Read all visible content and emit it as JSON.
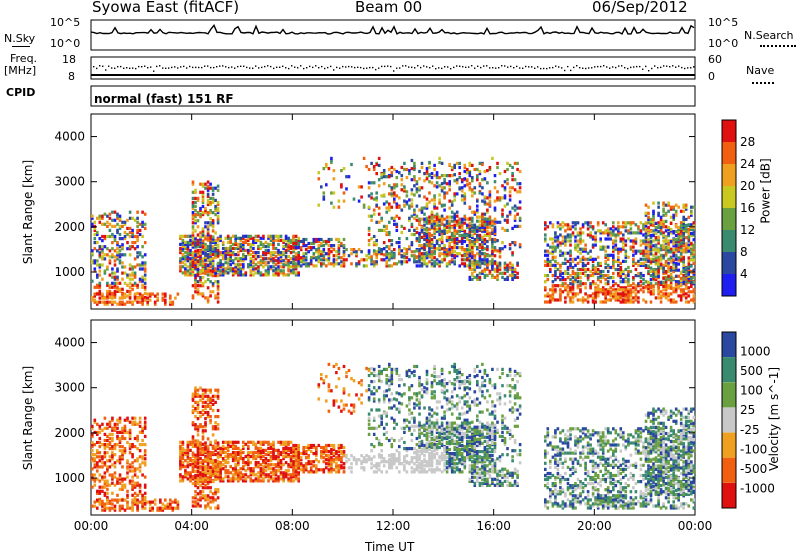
{
  "header": {
    "station": "Syowa East (fitACF)",
    "beam": "Beam 00",
    "date": "06/Sep/2012"
  },
  "strips": {
    "nsky_label": "N.Sky",
    "nsky_ticks": [
      "10^5",
      "10^0"
    ],
    "nsearch_label": "N.Search",
    "nsearch_ticks": [
      "10^5",
      "10^0"
    ],
    "freq_label": "Freq.",
    "freq_unit": "[MHz]",
    "freq_ticks": [
      "18",
      "8"
    ],
    "nave_label": "Nave",
    "nave_ticks": [
      "60",
      "0"
    ],
    "cpid_label": "CPID",
    "cpid_text": "normal (fast) 151 RF"
  },
  "colors": {
    "power": [
      "#1e1ef0",
      "#2a48a0",
      "#3a8a70",
      "#6aa040",
      "#c8c820",
      "#f0a020",
      "#f06010",
      "#e01010"
    ],
    "velocity": [
      "#e01010",
      "#f06010",
      "#f0a020",
      "#c8c8c8",
      "#6aa040",
      "#3a8a70",
      "#2a48a0"
    ]
  },
  "chart_data": [
    {
      "type": "heatmap",
      "name": "power",
      "ylabel": "Slant Range [km]",
      "xlabel": "",
      "x_ticks": [
        "00:00",
        "04:00",
        "08:00",
        "12:00",
        "16:00",
        "20:00",
        "00:00"
      ],
      "y_ticks": [
        1000,
        2000,
        3000,
        4000
      ],
      "ylim": [
        180,
        4500
      ],
      "xlim_hours": [
        0,
        24
      ],
      "colorbar_label": "Power [dB]",
      "colorbar_ticks": [
        4,
        8,
        12,
        16,
        20,
        24,
        28
      ],
      "colorbar_range": [
        0,
        32
      ]
    },
    {
      "type": "heatmap",
      "name": "velocity",
      "ylabel": "Slant Range [km]",
      "xlabel": "Time UT",
      "x_ticks": [
        "00:00",
        "04:00",
        "08:00",
        "12:00",
        "16:00",
        "20:00",
        "00:00"
      ],
      "y_ticks": [
        1000,
        2000,
        3000,
        4000
      ],
      "ylim": [
        180,
        4500
      ],
      "xlim_hours": [
        0,
        24
      ],
      "colorbar_label": "Velocity [m s^-1]",
      "colorbar_ticks": [
        "1000",
        "500",
        "100",
        "25",
        "-25",
        "-100",
        "-500",
        "-1000"
      ]
    }
  ]
}
